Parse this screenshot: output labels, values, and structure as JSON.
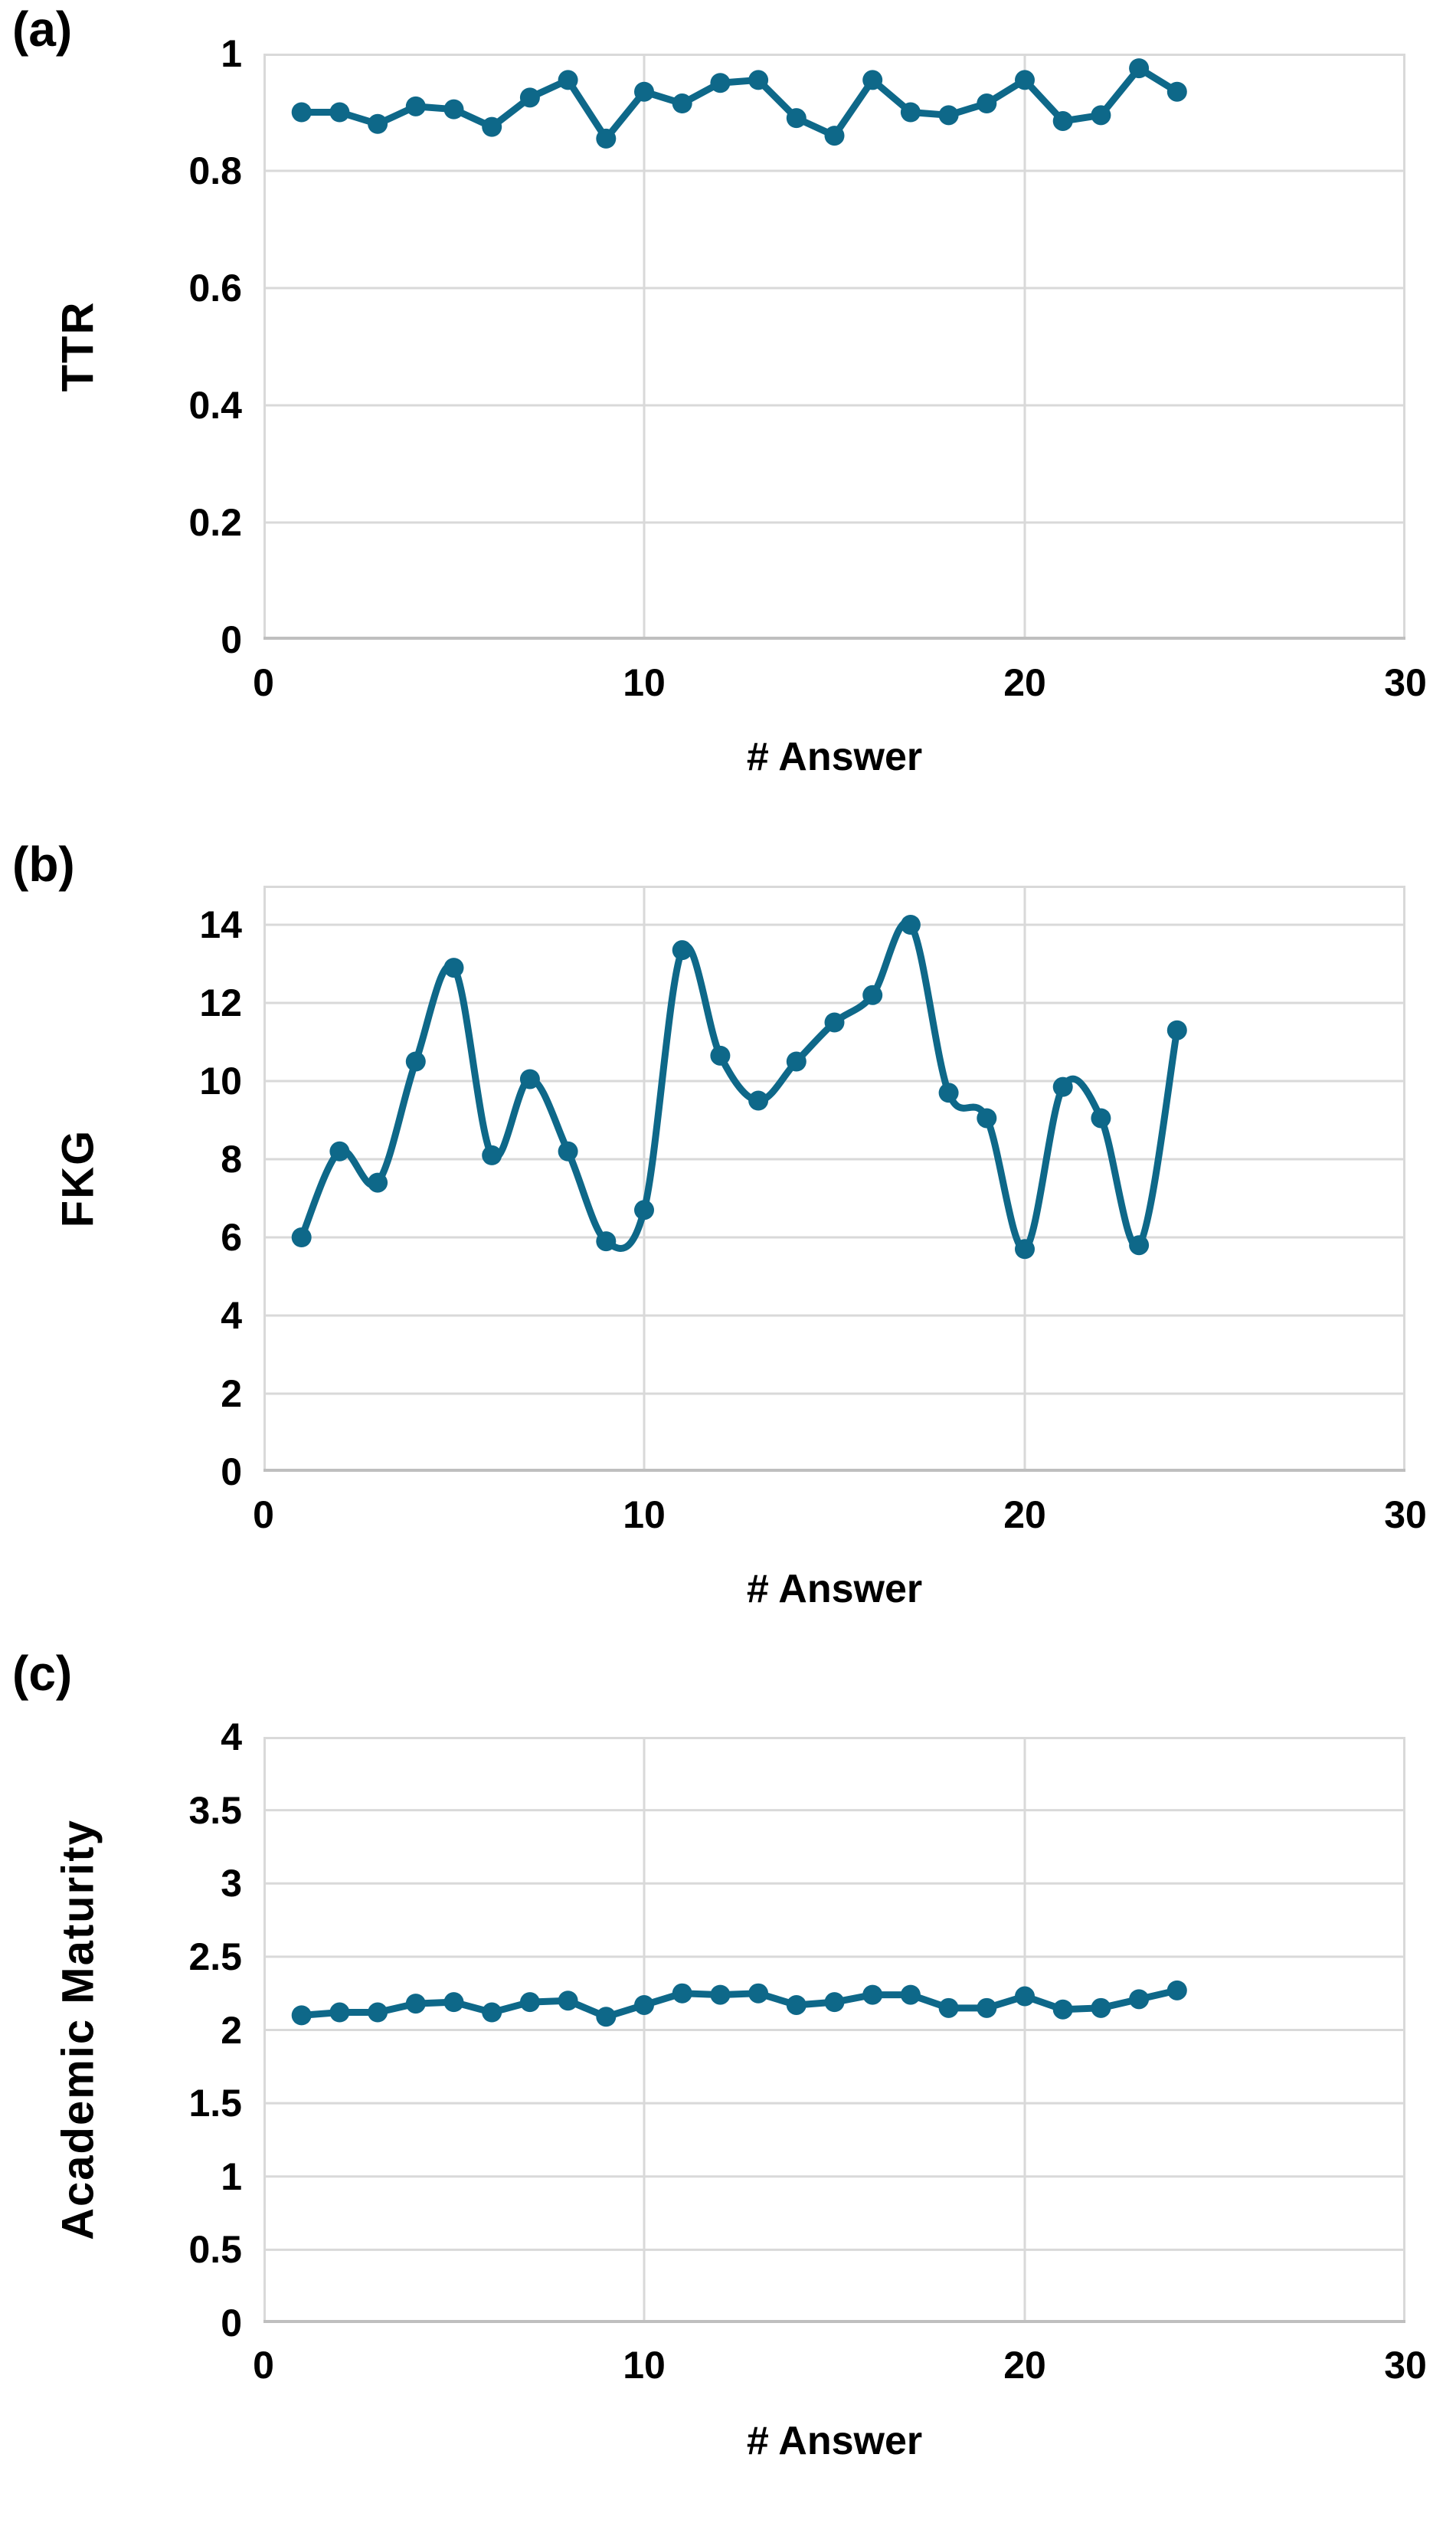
{
  "figure": {
    "background": "#ffffff",
    "series_color": "#0E6889",
    "grid_color": "#D9D9D9",
    "axis_line_color": "#BFBFBF",
    "text_color": "#000000"
  },
  "chart_data": [
    {
      "type": "line",
      "panel_label": "(a)",
      "ylabel": "TTR",
      "xlabel": "# Answer",
      "xlim": [
        0,
        30
      ],
      "ylim": [
        0,
        1
      ],
      "xticks": [
        0,
        10,
        20,
        30
      ],
      "xtick_labels": [
        "0",
        "10",
        "20",
        "30"
      ],
      "yticks": [
        0,
        0.2,
        0.4,
        0.6,
        0.8,
        1
      ],
      "ytick_labels": [
        "0",
        "0.2",
        "0.4",
        "0.6",
        "0.8",
        "1"
      ],
      "grid": true,
      "legend": null,
      "smooth": false,
      "markers": true,
      "x": [
        1,
        2,
        3,
        4,
        5,
        6,
        7,
        8,
        9,
        10,
        11,
        12,
        13,
        14,
        15,
        16,
        17,
        18,
        19,
        20,
        21,
        22,
        23,
        24
      ],
      "values": [
        0.9,
        0.9,
        0.88,
        0.91,
        0.905,
        0.875,
        0.925,
        0.955,
        0.855,
        0.935,
        0.915,
        0.95,
        0.955,
        0.89,
        0.86,
        0.955,
        0.9,
        0.895,
        0.915,
        0.955,
        0.885,
        0.895,
        0.975,
        0.935
      ]
    },
    {
      "type": "line",
      "panel_label": "(b)",
      "ylabel": "FKG",
      "xlabel": "# Answer",
      "xlim": [
        0,
        30
      ],
      "ylim": [
        0,
        15
      ],
      "xticks": [
        0,
        10,
        20,
        30
      ],
      "xtick_labels": [
        "0",
        "10",
        "20",
        "30"
      ],
      "yticks": [
        0,
        2,
        4,
        6,
        8,
        10,
        12,
        14
      ],
      "ytick_labels": [
        "0",
        "2",
        "4",
        "6",
        "8",
        "10",
        "12",
        "14"
      ],
      "grid": true,
      "legend": null,
      "smooth": true,
      "markers": true,
      "x": [
        1,
        2,
        3,
        4,
        5,
        6,
        7,
        8,
        9,
        10,
        11,
        12,
        13,
        14,
        15,
        16,
        17,
        18,
        19,
        20,
        21,
        22,
        23,
        24
      ],
      "values": [
        6.0,
        8.2,
        7.4,
        10.5,
        12.9,
        8.1,
        10.05,
        8.2,
        5.9,
        6.7,
        13.35,
        10.65,
        9.5,
        10.5,
        11.5,
        12.2,
        14.0,
        9.7,
        9.05,
        5.7,
        9.85,
        9.05,
        5.8,
        11.3
      ]
    },
    {
      "type": "line",
      "panel_label": "(c)",
      "ylabel": "Academic Maturity",
      "xlabel": "# Answer",
      "xlim": [
        0,
        30
      ],
      "ylim": [
        0,
        4
      ],
      "xticks": [
        0,
        10,
        20,
        30
      ],
      "xtick_labels": [
        "0",
        "10",
        "20",
        "30"
      ],
      "yticks": [
        0,
        0.5,
        1,
        1.5,
        2,
        2.5,
        3,
        3.5,
        4
      ],
      "ytick_labels": [
        "0",
        "0.5",
        "1",
        "1.5",
        "2",
        "2.5",
        "3",
        "3.5",
        "4"
      ],
      "grid": true,
      "legend": null,
      "smooth": false,
      "markers": true,
      "x": [
        1,
        2,
        3,
        4,
        5,
        6,
        7,
        8,
        9,
        10,
        11,
        12,
        13,
        14,
        15,
        16,
        17,
        18,
        19,
        20,
        21,
        22,
        23,
        24
      ],
      "values": [
        2.1,
        2.12,
        2.12,
        2.18,
        2.19,
        2.12,
        2.19,
        2.2,
        2.09,
        2.17,
        2.25,
        2.24,
        2.25,
        2.17,
        2.19,
        2.24,
        2.24,
        2.15,
        2.15,
        2.23,
        2.14,
        2.15,
        2.21,
        2.27
      ]
    }
  ]
}
